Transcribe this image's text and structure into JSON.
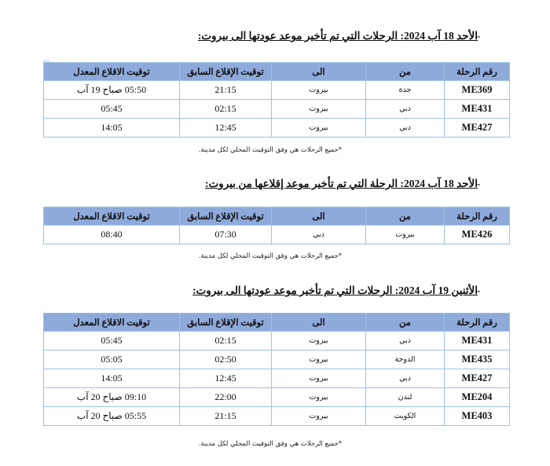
{
  "columns": [
    "رقم الرحلة",
    "من",
    "الى",
    "توقيت الإقلاع السابق",
    "توقيت الاقلاع المعدل"
  ],
  "note": "*جميع الرحلات هي وفق التوقيت المحلي لكل مدينة.",
  "colors": {
    "header_bg": "#8eaadb",
    "border": "#9dc3e6"
  },
  "sections": [
    {
      "dash": "-",
      "heading": "الأحد 18 آب 2024: الرحلات التي تم تأخير موعد عودتها الى بيروت:",
      "rows": [
        [
          "ME369",
          "جدة",
          "بيروت",
          "21:15",
          "05:50 صباح 19 آب"
        ],
        [
          "ME431",
          "دبي",
          "بيروت",
          "02:15",
          "05:45"
        ],
        [
          "ME427",
          "دبي",
          "بيروت",
          "12:45",
          "14:05"
        ]
      ]
    },
    {
      "dash": "-",
      "heading": "الأحد 18  آب 2024: الرحلة التي تم تأخير موعد إقلاعها من بيروت:",
      "rows": [
        [
          "ME426",
          "بيروت",
          "دبي",
          "07:30",
          "08:40"
        ]
      ]
    },
    {
      "dash": "-",
      "heading": "الأثنين 19 آب 2024: الرحلات التي تم تأخير موعد عودتها الى بيروت:",
      "rows": [
        [
          "ME431",
          "دبي",
          "بيروت",
          "02:15",
          "05:45"
        ],
        [
          "ME435",
          "الدوحة",
          "بيروت",
          "02:50",
          "05:05"
        ],
        [
          "ME427",
          "دبي",
          "بيروت",
          "12:45",
          "14:05"
        ],
        [
          "ME204",
          "لندن",
          "بيروت",
          "22:00",
          "09:10 صباح 20 آب"
        ],
        [
          "ME403",
          "الكويت",
          "بيروت",
          "21:15",
          "05:55 صباح 20 آب"
        ]
      ]
    }
  ]
}
